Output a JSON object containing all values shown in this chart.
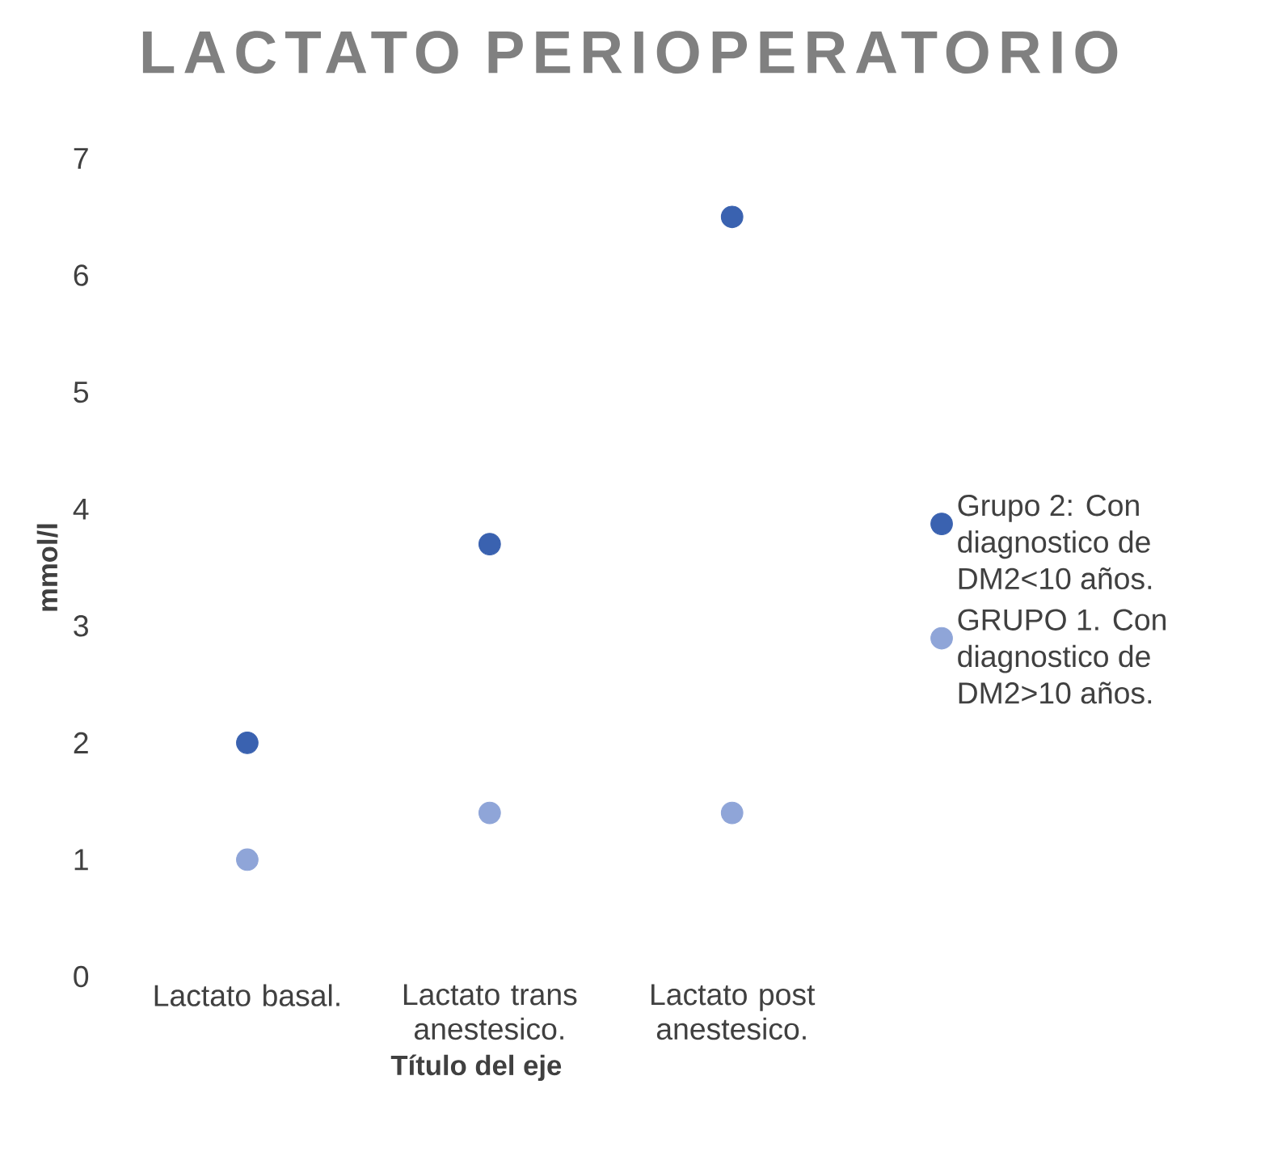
{
  "chart_data": {
    "type": "scatter",
    "title": "LACTATO PERIOPERATORIO",
    "xlabel": "Título del eje",
    "ylabel": "mmol/l",
    "categories": [
      "Lactato basal.",
      "Lactato trans anestesico.",
      "Lactato post anestesico."
    ],
    "series": [
      {
        "name": "Grupo 2: Con diagnostico de DM2<10 años.",
        "color": "#3a62b0",
        "values": [
          2.0,
          3.7,
          6.5
        ]
      },
      {
        "name": "GRUPO 1. Con diagnostico de DM2>10 años.",
        "color": "#8fa5d8",
        "values": [
          1.0,
          1.4,
          1.4
        ]
      }
    ],
    "ylim": [
      0,
      7
    ],
    "yticks": [
      0,
      1,
      2,
      3,
      4,
      5,
      6,
      7
    ],
    "legend": "right"
  }
}
